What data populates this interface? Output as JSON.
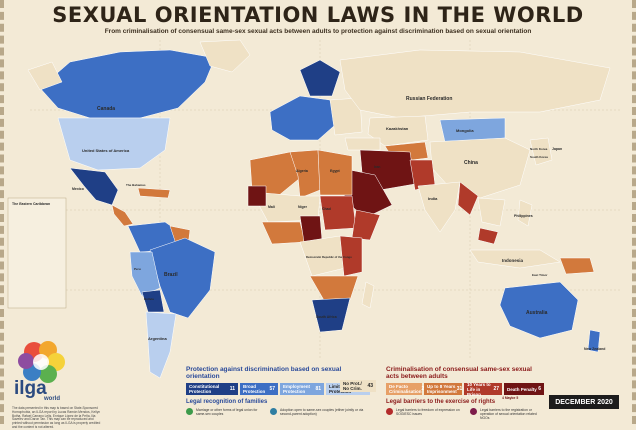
{
  "header": {
    "title": "SEXUAL ORIENTATION LAWS IN THE WORLD",
    "subtitle": "From criminalisation of consensual same-sex sexual acts between adults to protection against discrimination based on sexual orientation"
  },
  "map_labels": {
    "canada": "Canada",
    "usa": "United States of America",
    "mexico": "Mexico",
    "caribbean": "The Bahamas",
    "russia": "Russian Federation",
    "kazakhstan": "Kazakhstan",
    "mongolia": "Mongolia",
    "china": "China",
    "north_korea": "North Korea",
    "south_korea": "South Korea",
    "japan": "Japan",
    "india": "India",
    "iran": "Iran",
    "indonesia": "Indonesia",
    "philippines": "Philippines",
    "australia": "Australia",
    "new_zealand": "New Zealand",
    "brazil": "Brazil",
    "argentina": "Argentina",
    "bolivia": "Bolivia",
    "peru": "Peru",
    "algeria": "Algeria",
    "mali": "Mali",
    "niger": "Niger",
    "chad": "Chad",
    "egypt": "Egypt",
    "dr_congo": "Democratic Republic of the Congo",
    "south_africa": "South Africa",
    "east_timor": "East Timor"
  },
  "legend": {
    "protection_heading": "Protection against discrimination based on sexual orientation",
    "protection_items": [
      {
        "label": "Constitutional Protection",
        "count": "11",
        "color": "#1f3f86"
      },
      {
        "label": "Broad Protection",
        "count": "57",
        "color": "#3d6fc4"
      },
      {
        "label": "Employment Protection",
        "count": "81",
        "color": "#7ea6de"
      },
      {
        "label": "Limited/Uneven Protection",
        "count": "7",
        "color": "#b9cfee"
      },
      {
        "label": "No Prot./ No Crim.",
        "count": "43",
        "color": "#efe1c5"
      }
    ],
    "crim_heading": "Criminalisation of consensual same-sex sexual acts between adults",
    "crim_items": [
      {
        "label": "De Facto Criminalisation",
        "count": "2",
        "color": "#e7a067"
      },
      {
        "label": "Up to 8 Years Imprisonment",
        "count": "31",
        "color": "#d2793c"
      },
      {
        "label": "10 Years to Life in Prison",
        "count": "27",
        "color": "#b03a2a"
      },
      {
        "label": "Death Penalty",
        "count": "6",
        "extra": "4 Maybe 5",
        "color": "#6f1414"
      }
    ],
    "families_heading": "Legal recognition of families",
    "families_items": [
      {
        "label": "Marriage or other forms of legal union for same-sex couples",
        "color": "#3c9a4a"
      },
      {
        "label": "Adoption open to same-sex couples (either jointly or via second-parent adoption)",
        "color": "#2f7ea2"
      }
    ],
    "barriers_heading": "Legal barriers to the exercise of rights",
    "barriers_items": [
      {
        "label": "Legal barriers to freedom of expression on SOGIESC issues",
        "color": "#b32b2b"
      },
      {
        "label": "Legal barriers to the registration or operation of sexual orientation related NGOs",
        "color": "#7d1c4a"
      }
    ]
  },
  "branding": {
    "logo_text": "ilga",
    "logo_sub": "world",
    "date": "DECEMBER 2020",
    "footnote": "The data presented in this map is based on State-Sponsored Homophobia, an ILGA report by Lucas Ramón Mendos, Kellyn Botha, Rafael Carrano Lelis, Enrique López de la Peña, Ilia Savelev and Daron Tan. This map can be reproduced and printed without permission as long as ILGA is properly credited and the content is not altered."
  },
  "colors": {
    "background": "#f3ead6",
    "ocean": "#f3ead6",
    "no_protection": "#efe1c5",
    "title": "#2e2418"
  }
}
